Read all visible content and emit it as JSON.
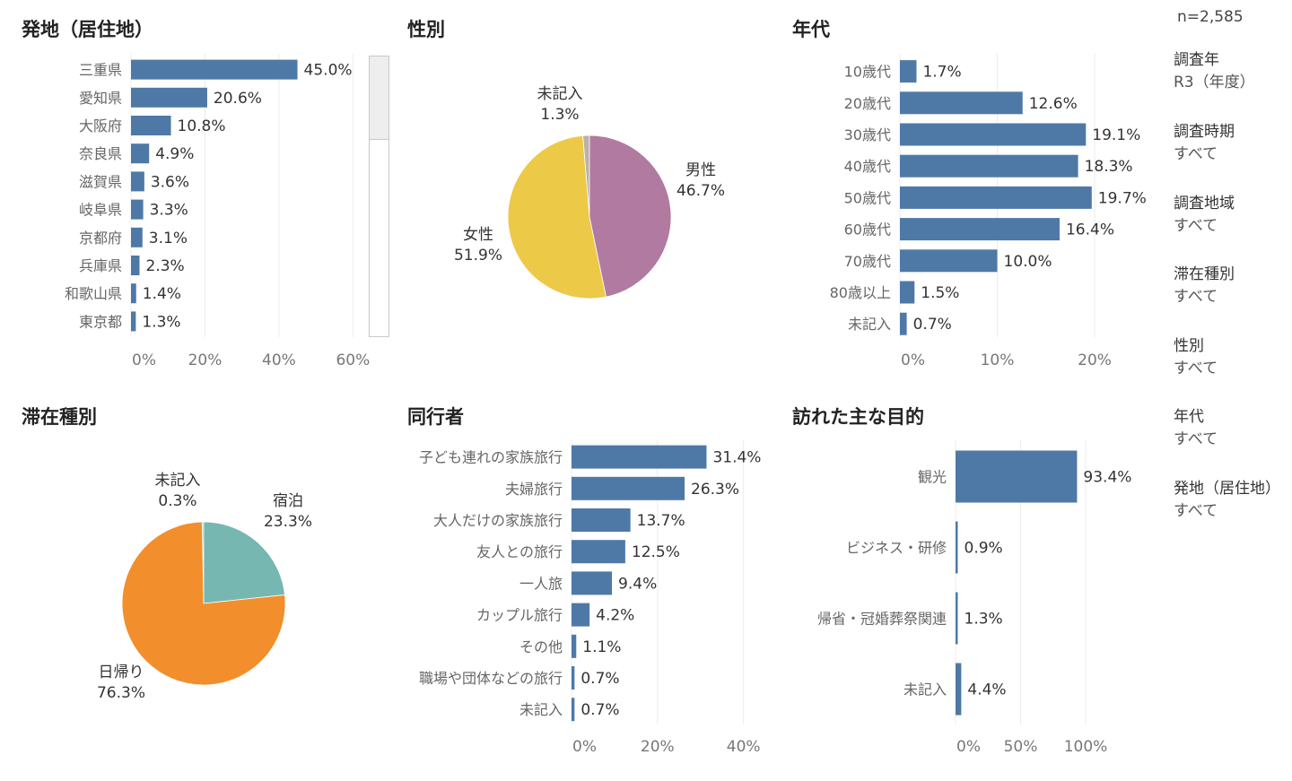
{
  "sample_size": "n=2,585",
  "titles": {
    "origin": "発地（居住地）",
    "gender": "性別",
    "age": "年代",
    "stay": "滞在種別",
    "companion": "同行者",
    "purpose": "訪れた主な目的"
  },
  "filters": [
    {
      "label": "調査年",
      "value": "R3（年度）"
    },
    {
      "label": "調査時期",
      "value": "すべて"
    },
    {
      "label": "調査地域",
      "value": "すべて"
    },
    {
      "label": "滞在種別",
      "value": "すべて"
    },
    {
      "label": "性別",
      "value": "すべて"
    },
    {
      "label": "年代",
      "value": "すべて"
    },
    {
      "label": "発地（居住地）",
      "value": "すべて"
    }
  ],
  "colors": {
    "bar": "#4e79a7",
    "grid": "#ececec",
    "female": "#edc948",
    "male": "#b07aa1",
    "unreported_gender": "#bab0ac",
    "daytrip": "#f28e2b",
    "overnight": "#76b7b2"
  },
  "chart_data": [
    {
      "id": "origin",
      "type": "bar",
      "orientation": "horizontal",
      "categories": [
        "三重県",
        "愛知県",
        "大阪府",
        "奈良県",
        "滋賀県",
        "岐阜県",
        "京都府",
        "兵庫県",
        "和歌山県",
        "東京都"
      ],
      "values": [
        45.0,
        20.6,
        10.8,
        4.9,
        3.6,
        3.3,
        3.1,
        2.3,
        1.4,
        1.3
      ],
      "labels": [
        "45.0%",
        "20.6%",
        "10.8%",
        "4.9%",
        "3.6%",
        "3.3%",
        "3.1%",
        "2.3%",
        "1.4%",
        "1.3%"
      ],
      "xlim": [
        0,
        65
      ],
      "xticks": [
        0,
        20,
        40,
        60
      ],
      "xtick_labels": [
        "0%",
        "20%",
        "40%",
        "60%"
      ],
      "grid": true
    },
    {
      "id": "gender",
      "type": "pie",
      "slices": [
        {
          "name": "男性",
          "value": 46.7,
          "label": "46.7%",
          "color": "#b07aa1"
        },
        {
          "name": "女性",
          "value": 51.9,
          "label": "51.9%",
          "color": "#edc948"
        },
        {
          "name": "未記入",
          "value": 1.3,
          "label": "1.3%",
          "color": "#bab0ac"
        }
      ]
    },
    {
      "id": "age",
      "type": "bar",
      "orientation": "horizontal",
      "categories": [
        "10歳代",
        "20歳代",
        "30歳代",
        "40歳代",
        "50歳代",
        "60歳代",
        "70歳代",
        "80歳以上",
        "未記入"
      ],
      "values": [
        1.7,
        12.6,
        19.1,
        18.3,
        19.7,
        16.4,
        10.0,
        1.5,
        0.7
      ],
      "labels": [
        "1.7%",
        "12.6%",
        "19.1%",
        "18.3%",
        "19.7%",
        "16.4%",
        "10.0%",
        "1.5%",
        "0.7%"
      ],
      "xlim": [
        0,
        27
      ],
      "xticks": [
        0,
        10,
        20
      ],
      "xtick_labels": [
        "0%",
        "10%",
        "20%"
      ],
      "grid": true
    },
    {
      "id": "stay",
      "type": "pie",
      "slices": [
        {
          "name": "宿泊",
          "value": 23.3,
          "label": "23.3%",
          "color": "#76b7b2"
        },
        {
          "name": "日帰り",
          "value": 76.3,
          "label": "76.3%",
          "color": "#f28e2b"
        },
        {
          "name": "未記入",
          "value": 0.3,
          "label": "0.3%",
          "color": "#bab0ac"
        }
      ]
    },
    {
      "id": "companion",
      "type": "bar",
      "orientation": "horizontal",
      "categories": [
        "子ども連れの家族旅行",
        "夫婦旅行",
        "大人だけの家族旅行",
        "友人との旅行",
        "一人旅",
        "カップル旅行",
        "その他",
        "職場や団体などの旅行",
        "未記入"
      ],
      "values": [
        31.4,
        26.3,
        13.7,
        12.5,
        9.4,
        4.2,
        1.1,
        0.7,
        0.7
      ],
      "labels": [
        "31.4%",
        "26.3%",
        "13.7%",
        "12.5%",
        "9.4%",
        "4.2%",
        "1.1%",
        "0.7%",
        "0.7%"
      ],
      "xlim": [
        0,
        48
      ],
      "xticks": [
        0,
        20,
        40
      ],
      "xtick_labels": [
        "0%",
        "20%",
        "40%"
      ],
      "grid": true
    },
    {
      "id": "purpose",
      "type": "bar",
      "orientation": "horizontal",
      "categories": [
        "観光",
        "ビジネス・研修",
        "帰省・冠婚葬祭関連",
        "未記入"
      ],
      "values": [
        93.4,
        0.9,
        1.3,
        4.4
      ],
      "labels": [
        "93.4%",
        "0.9%",
        "1.3%",
        "4.4%"
      ],
      "xlim": [
        0,
        160
      ],
      "xticks": [
        0,
        50,
        100
      ],
      "xtick_labels": [
        "0%",
        "50%",
        "100%"
      ],
      "grid": true
    }
  ]
}
